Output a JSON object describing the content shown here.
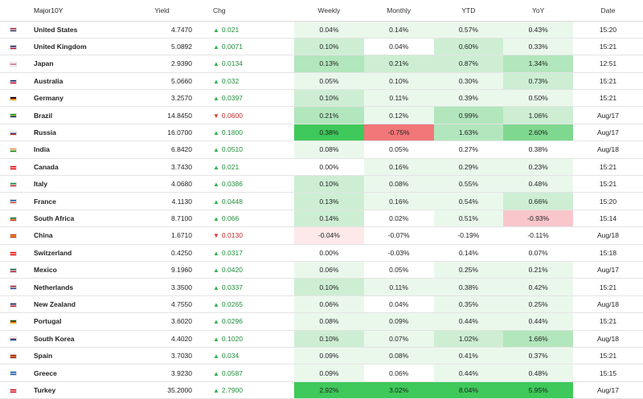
{
  "headers": {
    "name": "Major10Y",
    "yield": "Yield",
    "chg": "Chg",
    "weekly": "Weekly",
    "monthly": "Monthly",
    "ytd": "YTD",
    "yoy": "YoY",
    "date": "Date"
  },
  "colors": {
    "up_arrow": "#2db34a",
    "down_arrow": "#e53935",
    "green_1": "#eaf8ec",
    "green_2": "#cdeed3",
    "green_3": "#b2e6bc",
    "green_4": "#7fd88f",
    "green_5": "#3ec95a",
    "red_1": "#fde8ea",
    "red_2": "#f9c6cb",
    "red_3": "#f27779"
  },
  "rows": [
    {
      "country": "United States",
      "flag": "us-flag-icon",
      "flag_colors": [
        "#b22234",
        "#ffffff",
        "#3c3b6e"
      ],
      "yield": "4.7470",
      "dir": "up",
      "chg": "0.021",
      "weekly": "0.04%",
      "monthly": "0.14%",
      "ytd": "0.57%",
      "yoy": "0.43%",
      "date": "15:20",
      "heat": {
        "weekly": "green_1",
        "monthly": "green_1",
        "ytd": "green_1",
        "yoy": "green_1"
      }
    },
    {
      "country": "United Kingdom",
      "flag": "uk-flag-icon",
      "flag_colors": [
        "#012169",
        "#ffffff",
        "#c8102e"
      ],
      "yield": "5.0892",
      "dir": "up",
      "chg": "0.0071",
      "weekly": "0.10%",
      "monthly": "0.04%",
      "ytd": "0.60%",
      "yoy": "0.33%",
      "date": "15:21",
      "heat": {
        "weekly": "green_2",
        "monthly": "none",
        "ytd": "green_2",
        "yoy": "green_1"
      }
    },
    {
      "country": "Japan",
      "flag": "japan-flag-icon",
      "flag_colors": [
        "#ffffff",
        "#bc002d",
        "#ffffff"
      ],
      "yield": "2.9390",
      "dir": "up",
      "chg": "0.0134",
      "weekly": "0.13%",
      "monthly": "0.21%",
      "ytd": "0.87%",
      "yoy": "1.34%",
      "date": "12:51",
      "heat": {
        "weekly": "green_3",
        "monthly": "green_2",
        "ytd": "green_2",
        "yoy": "green_3"
      }
    },
    {
      "country": "Australia",
      "flag": "australia-flag-icon",
      "flag_colors": [
        "#012169",
        "#ffffff",
        "#e4002b"
      ],
      "yield": "5.0660",
      "dir": "up",
      "chg": "0.032",
      "weekly": "0.05%",
      "monthly": "0.10%",
      "ytd": "0.30%",
      "yoy": "0.73%",
      "date": "15:21",
      "heat": {
        "weekly": "green_1",
        "monthly": "green_1",
        "ytd": "green_1",
        "yoy": "green_2"
      }
    },
    {
      "country": "Germany",
      "flag": "germany-flag-icon",
      "flag_colors": [
        "#000000",
        "#dd0000",
        "#ffce00"
      ],
      "yield": "3.2570",
      "dir": "up",
      "chg": "0.0397",
      "weekly": "0.10%",
      "monthly": "0.11%",
      "ytd": "0.39%",
      "yoy": "0.50%",
      "date": "15:21",
      "heat": {
        "weekly": "green_2",
        "monthly": "green_1",
        "ytd": "green_1",
        "yoy": "green_1"
      }
    },
    {
      "country": "Brazil",
      "flag": "brazil-flag-icon",
      "flag_colors": [
        "#009c3b",
        "#ffdf00",
        "#002776"
      ],
      "yield": "14.8450",
      "dir": "down",
      "chg": "0.0600",
      "weekly": "0.21%",
      "monthly": "0.12%",
      "ytd": "0.99%",
      "yoy": "1.06%",
      "date": "Aug/17",
      "heat": {
        "weekly": "green_3",
        "monthly": "green_1",
        "ytd": "green_3",
        "yoy": "green_2"
      }
    },
    {
      "country": "Russia",
      "flag": "russia-flag-icon",
      "flag_colors": [
        "#ffffff",
        "#0039a6",
        "#d52b1e"
      ],
      "yield": "16.0700",
      "dir": "up",
      "chg": "0.1800",
      "weekly": "0.38%",
      "monthly": "-0.75%",
      "ytd": "1.63%",
      "yoy": "2.60%",
      "date": "Aug/17",
      "heat": {
        "weekly": "green_5",
        "monthly": "red_3",
        "ytd": "green_3",
        "yoy": "green_4"
      }
    },
    {
      "country": "India",
      "flag": "india-flag-icon",
      "flag_colors": [
        "#ff9933",
        "#ffffff",
        "#138808"
      ],
      "yield": "6.8420",
      "dir": "up",
      "chg": "0.0510",
      "weekly": "0.08%",
      "monthly": "0.05%",
      "ytd": "0.27%",
      "yoy": "0.38%",
      "date": "Aug/18",
      "heat": {
        "weekly": "green_1",
        "monthly": "none",
        "ytd": "none",
        "yoy": "none"
      }
    },
    {
      "country": "Canada",
      "flag": "canada-flag-icon",
      "flag_colors": [
        "#ff0000",
        "#ffffff",
        "#ff0000"
      ],
      "yield": "3.7430",
      "dir": "up",
      "chg": "0.021",
      "weekly": "0.00%",
      "monthly": "0.16%",
      "ytd": "0.29%",
      "yoy": "0.23%",
      "date": "15:21",
      "heat": {
        "weekly": "none",
        "monthly": "green_1",
        "ytd": "green_1",
        "yoy": "green_1"
      }
    },
    {
      "country": "Italy",
      "flag": "italy-flag-icon",
      "flag_colors": [
        "#009246",
        "#ffffff",
        "#ce2b37"
      ],
      "yield": "4.0680",
      "dir": "up",
      "chg": "0.0386",
      "weekly": "0.10%",
      "monthly": "0.08%",
      "ytd": "0.55%",
      "yoy": "0.48%",
      "date": "15:21",
      "heat": {
        "weekly": "green_2",
        "monthly": "green_1",
        "ytd": "green_1",
        "yoy": "green_1"
      }
    },
    {
      "country": "France",
      "flag": "france-flag-icon",
      "flag_colors": [
        "#0055a4",
        "#ffffff",
        "#ef4135"
      ],
      "yield": "4.1130",
      "dir": "up",
      "chg": "0.0448",
      "weekly": "0.13%",
      "monthly": "0.16%",
      "ytd": "0.54%",
      "yoy": "0.66%",
      "date": "15:20",
      "heat": {
        "weekly": "green_2",
        "monthly": "green_1",
        "ytd": "green_1",
        "yoy": "green_2"
      }
    },
    {
      "country": "South Africa",
      "flag": "south-africa-flag-icon",
      "flag_colors": [
        "#007a4d",
        "#ffb612",
        "#de3831"
      ],
      "yield": "8.7100",
      "dir": "up",
      "chg": "0.066",
      "weekly": "0.14%",
      "monthly": "0.02%",
      "ytd": "0.51%",
      "yoy": "-0.93%",
      "date": "15:14",
      "heat": {
        "weekly": "green_2",
        "monthly": "none",
        "ytd": "green_1",
        "yoy": "red_2"
      }
    },
    {
      "country": "China",
      "flag": "china-flag-icon",
      "flag_colors": [
        "#de2910",
        "#ffde00",
        "#de2910"
      ],
      "yield": "1.6710",
      "dir": "down",
      "chg": "0.0130",
      "weekly": "-0.04%",
      "monthly": "-0.07%",
      "ytd": "-0.19%",
      "yoy": "-0.11%",
      "date": "Aug/18",
      "heat": {
        "weekly": "red_1",
        "monthly": "none",
        "ytd": "none",
        "yoy": "none"
      }
    },
    {
      "country": "Switzerland",
      "flag": "switzerland-flag-icon",
      "flag_colors": [
        "#ff0000",
        "#ffffff",
        "#ff0000"
      ],
      "yield": "0.4250",
      "dir": "up",
      "chg": "0.0317",
      "weekly": "0.00%",
      "monthly": "-0.03%",
      "ytd": "0.14%",
      "yoy": "0.07%",
      "date": "15:18",
      "heat": {
        "weekly": "none",
        "monthly": "none",
        "ytd": "none",
        "yoy": "none"
      }
    },
    {
      "country": "Mexico",
      "flag": "mexico-flag-icon",
      "flag_colors": [
        "#006847",
        "#ffffff",
        "#ce1126"
      ],
      "yield": "9.1960",
      "dir": "up",
      "chg": "0.0420",
      "weekly": "0.06%",
      "monthly": "0.05%",
      "ytd": "0.25%",
      "yoy": "0.21%",
      "date": "Aug/17",
      "heat": {
        "weekly": "green_1",
        "monthly": "none",
        "ytd": "green_1",
        "yoy": "green_1"
      }
    },
    {
      "country": "Netherlands",
      "flag": "netherlands-flag-icon",
      "flag_colors": [
        "#ae1c28",
        "#ffffff",
        "#21468b"
      ],
      "yield": "3.3500",
      "dir": "up",
      "chg": "0.0337",
      "weekly": "0.10%",
      "monthly": "0.11%",
      "ytd": "0.38%",
      "yoy": "0.42%",
      "date": "15:21",
      "heat": {
        "weekly": "green_2",
        "monthly": "green_1",
        "ytd": "green_1",
        "yoy": "green_1"
      }
    },
    {
      "country": "New Zealand",
      "flag": "new-zealand-flag-icon",
      "flag_colors": [
        "#012169",
        "#ffffff",
        "#c8102e"
      ],
      "yield": "4.7550",
      "dir": "up",
      "chg": "0.0265",
      "weekly": "0.06%",
      "monthly": "0.04%",
      "ytd": "0.35%",
      "yoy": "0.25%",
      "date": "Aug/18",
      "heat": {
        "weekly": "green_1",
        "monthly": "none",
        "ytd": "green_1",
        "yoy": "green_1"
      }
    },
    {
      "country": "Portugal",
      "flag": "portugal-flag-icon",
      "flag_colors": [
        "#006600",
        "#ff0000",
        "#ffcc00"
      ],
      "yield": "3.6020",
      "dir": "up",
      "chg": "0.0296",
      "weekly": "0.08%",
      "monthly": "0.09%",
      "ytd": "0.44%",
      "yoy": "0.44%",
      "date": "15:21",
      "heat": {
        "weekly": "green_1",
        "monthly": "green_1",
        "ytd": "green_1",
        "yoy": "green_1"
      }
    },
    {
      "country": "South Korea",
      "flag": "south-korea-flag-icon",
      "flag_colors": [
        "#ffffff",
        "#cd2e3a",
        "#0047a0"
      ],
      "yield": "4.4020",
      "dir": "up",
      "chg": "0.1020",
      "weekly": "0.10%",
      "monthly": "0.07%",
      "ytd": "1.02%",
      "yoy": "1.66%",
      "date": "Aug/18",
      "heat": {
        "weekly": "green_2",
        "monthly": "green_1",
        "ytd": "green_2",
        "yoy": "green_3"
      }
    },
    {
      "country": "Spain",
      "flag": "spain-flag-icon",
      "flag_colors": [
        "#aa151b",
        "#f1bf00",
        "#aa151b"
      ],
      "yield": "3.7030",
      "dir": "up",
      "chg": "0.034",
      "weekly": "0.09%",
      "monthly": "0.08%",
      "ytd": "0.41%",
      "yoy": "0.37%",
      "date": "15:21",
      "heat": {
        "weekly": "green_1",
        "monthly": "green_1",
        "ytd": "green_1",
        "yoy": "green_1"
      }
    },
    {
      "country": "Greece",
      "flag": "greece-flag-icon",
      "flag_colors": [
        "#0d5eaf",
        "#ffffff",
        "#0d5eaf"
      ],
      "yield": "3.9230",
      "dir": "up",
      "chg": "0.0587",
      "weekly": "0.09%",
      "monthly": "0.06%",
      "ytd": "0.44%",
      "yoy": "0.48%",
      "date": "15:15",
      "heat": {
        "weekly": "green_1",
        "monthly": "none",
        "ytd": "green_1",
        "yoy": "green_1"
      }
    },
    {
      "country": "Turkey",
      "flag": "turkey-flag-icon",
      "flag_colors": [
        "#e30a17",
        "#ffffff",
        "#e30a17"
      ],
      "yield": "35.2000",
      "dir": "up",
      "chg": "2.7900",
      "weekly": "2.92%",
      "monthly": "3.02%",
      "ytd": "8.04%",
      "yoy": "5.95%",
      "date": "Aug/17",
      "heat": {
        "weekly": "green_5",
        "monthly": "green_5",
        "ytd": "green_5",
        "yoy": "green_5"
      }
    }
  ]
}
